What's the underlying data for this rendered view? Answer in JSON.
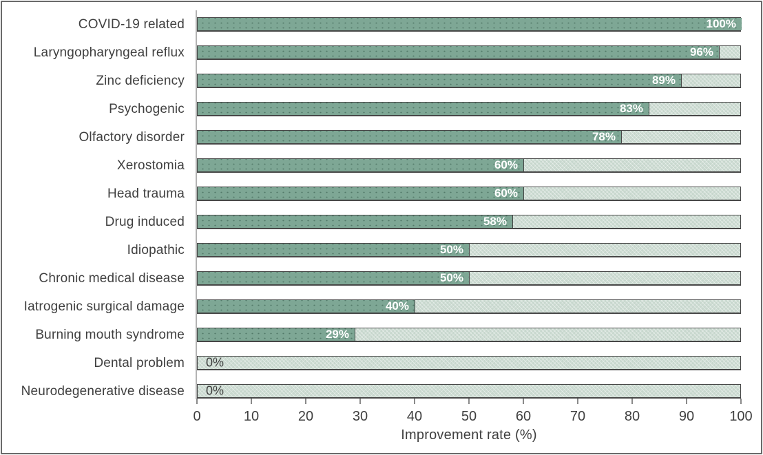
{
  "chart_data": {
    "type": "bar",
    "orientation": "horizontal",
    "title": "",
    "xlabel": "Improvement rate (%)",
    "ylabel": "",
    "xlim": [
      0,
      100
    ],
    "xticks": [
      0,
      10,
      20,
      30,
      40,
      50,
      60,
      70,
      80,
      90,
      100
    ],
    "grid": false,
    "legend": false,
    "categories": [
      "COVID-19 related",
      "Laryngopharyngeal reflux",
      "Zinc deficiency",
      "Psychogenic",
      "Olfactory disorder",
      "Xerostomia",
      "Head trauma",
      "Drug induced",
      "Idiopathic",
      "Chronic medical disease",
      "Iatrogenic surgical damage",
      "Burning mouth syndrome",
      "Dental problem",
      "Neurodegenerative disease"
    ],
    "values": [
      100,
      96,
      89,
      83,
      78,
      60,
      60,
      58,
      50,
      50,
      40,
      29,
      0,
      0
    ],
    "value_labels": [
      "100%",
      "96%",
      "89%",
      "83%",
      "78%",
      "60%",
      "60%",
      "58%",
      "50%",
      "50%",
      "40%",
      "29%",
      "0%",
      "0%"
    ]
  },
  "colors": {
    "bar_fill": "#7ea795",
    "bar_background": "#c7d7cd",
    "bar_border": "#474747",
    "value_label": "#ffffff",
    "zero_label": "#3d3d3d",
    "axis_text": "#3f3f3f",
    "axis_line": "#b3b3b3",
    "frame_border": "#6a6a6a"
  }
}
